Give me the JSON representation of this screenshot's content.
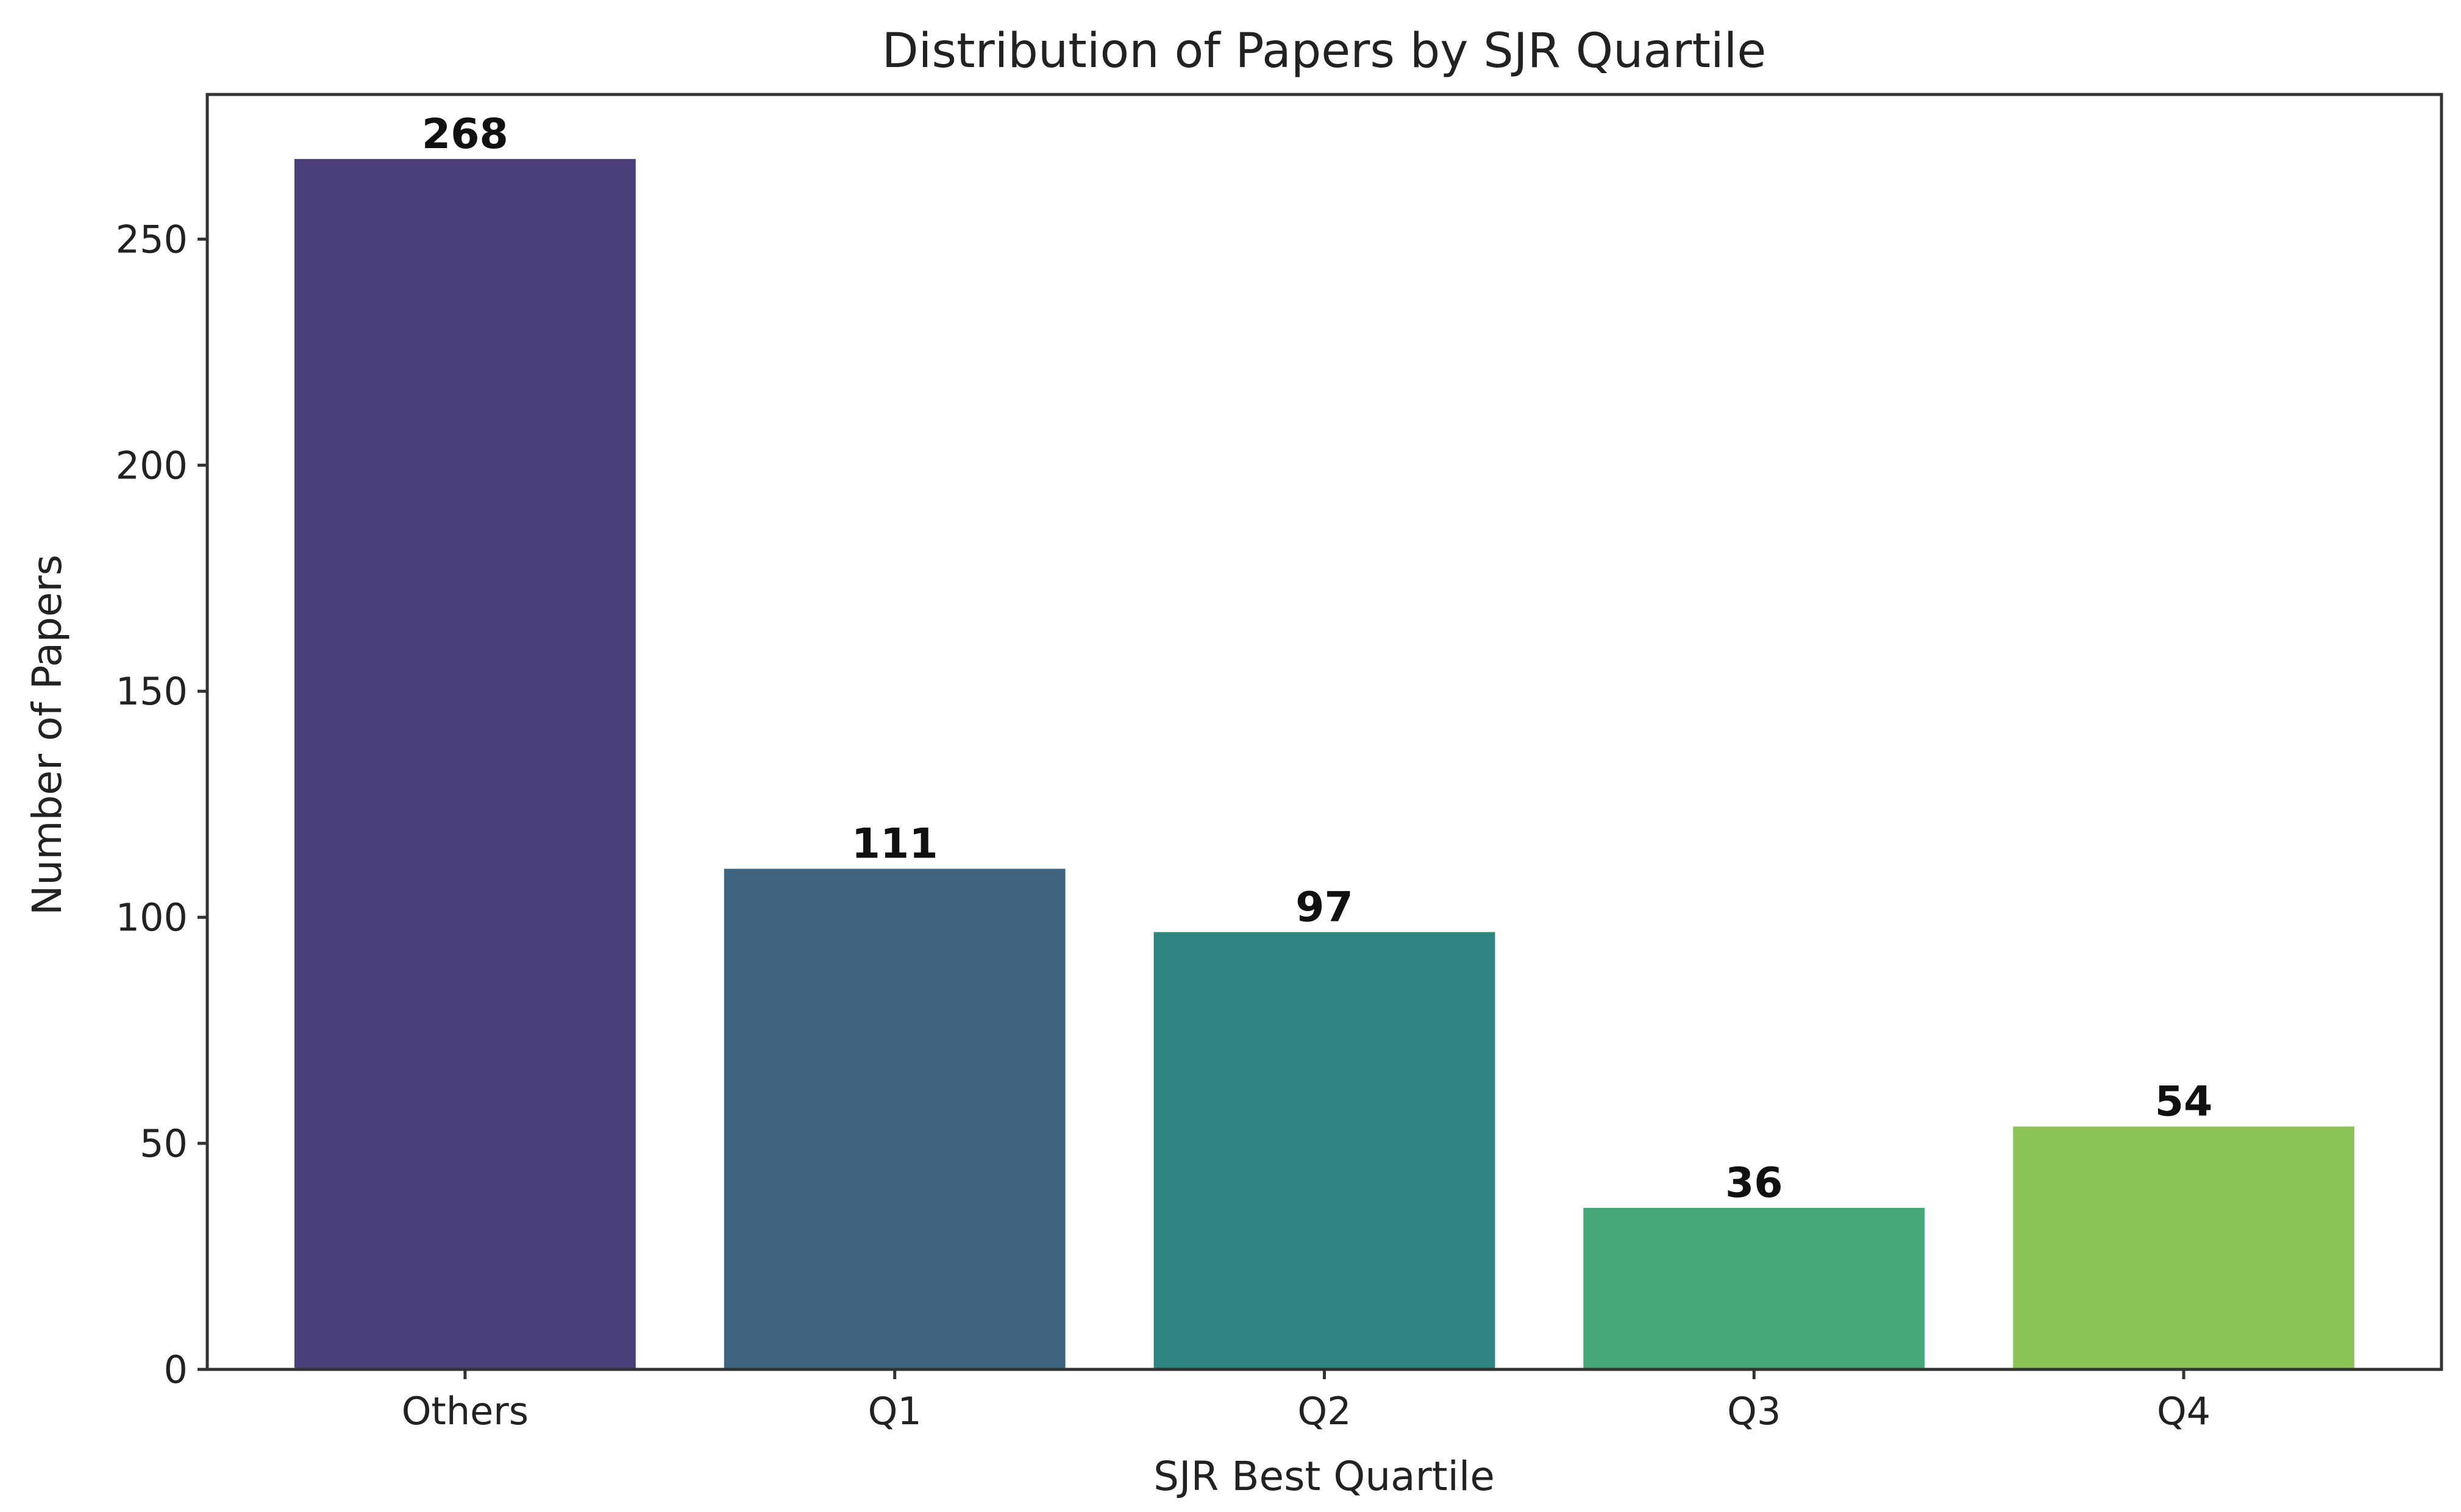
{
  "chart_data": {
    "type": "bar",
    "title": "Distribution of Papers by SJR Quartile",
    "xlabel": "SJR Best Quartile",
    "ylabel": "Number of Papers",
    "categories": [
      "Others",
      "Q1",
      "Q2",
      "Q3",
      "Q4"
    ],
    "values": [
      268,
      111,
      97,
      36,
      54
    ],
    "data_labels": [
      "268",
      "111",
      "97",
      "36",
      "54"
    ],
    "colors": [
      "#4a3f78",
      "#3e6481",
      "#2e847f",
      "#46a877",
      "#8ac354"
    ],
    "ylim": [
      0,
      282
    ],
    "yticks": [
      0,
      50,
      100,
      150,
      200,
      250
    ],
    "ytick_labels": [
      "0",
      "50",
      "100",
      "150",
      "200",
      "250"
    ],
    "grid": false,
    "legend": "none"
  }
}
